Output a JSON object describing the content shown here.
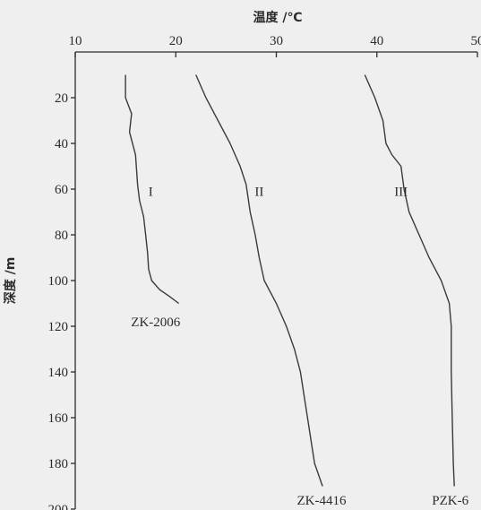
{
  "chart_data": {
    "type": "line",
    "xlabel": "温度 /℃",
    "ylabel": "深度 /m",
    "xlim": [
      10,
      50
    ],
    "ylim": [
      0,
      200
    ],
    "y_inverted": true,
    "x_axis_position": "top",
    "x_ticks": [
      10,
      20,
      30,
      40,
      50
    ],
    "y_ticks": [
      20,
      40,
      60,
      80,
      100,
      120,
      140,
      160,
      180,
      200
    ],
    "grid": false,
    "series": [
      {
        "name": "ZK-2006",
        "roman": "I",
        "points": [
          [
            15,
            10
          ],
          [
            15,
            20
          ],
          [
            15.6,
            27
          ],
          [
            15.4,
            35
          ],
          [
            16,
            45
          ],
          [
            16.2,
            58
          ],
          [
            16.4,
            65
          ],
          [
            16.8,
            72
          ],
          [
            17,
            80
          ],
          [
            17.2,
            88
          ],
          [
            17.3,
            95
          ],
          [
            17.6,
            100
          ],
          [
            18.4,
            104
          ],
          [
            19.4,
            107
          ],
          [
            20.3,
            110
          ]
        ],
        "roman_at": [
          17.5,
          63
        ],
        "name_at": [
          18,
          120
        ]
      },
      {
        "name": "ZK-4416",
        "roman": "II",
        "points": [
          [
            22,
            10
          ],
          [
            23,
            20
          ],
          [
            24.2,
            30
          ],
          [
            25.4,
            40
          ],
          [
            26.4,
            50
          ],
          [
            27,
            58
          ],
          [
            27.4,
            70
          ],
          [
            27.9,
            80
          ],
          [
            28.3,
            90
          ],
          [
            28.8,
            100
          ],
          [
            30,
            110
          ],
          [
            31,
            120
          ],
          [
            31.8,
            130
          ],
          [
            32.4,
            140
          ],
          [
            33.1,
            160
          ],
          [
            33.8,
            180
          ],
          [
            34.6,
            190
          ]
        ],
        "roman_at": [
          28.3,
          63
        ],
        "name_at": [
          34.5,
          198
        ]
      },
      {
        "name": "PZK-6",
        "roman": "III",
        "points": [
          [
            38.8,
            10
          ],
          [
            39.8,
            20
          ],
          [
            40.6,
            30
          ],
          [
            40.9,
            40
          ],
          [
            41.5,
            45
          ],
          [
            42.4,
            50
          ],
          [
            42.7,
            60
          ],
          [
            43.2,
            70
          ],
          [
            44.2,
            80
          ],
          [
            45.2,
            90
          ],
          [
            46.4,
            100
          ],
          [
            47.2,
            110
          ],
          [
            47.4,
            120
          ],
          [
            47.4,
            140
          ],
          [
            47.5,
            160
          ],
          [
            47.6,
            180
          ],
          [
            47.7,
            190
          ]
        ],
        "roman_at": [
          42.4,
          63
        ],
        "name_at": [
          47.3,
          198
        ]
      }
    ]
  }
}
